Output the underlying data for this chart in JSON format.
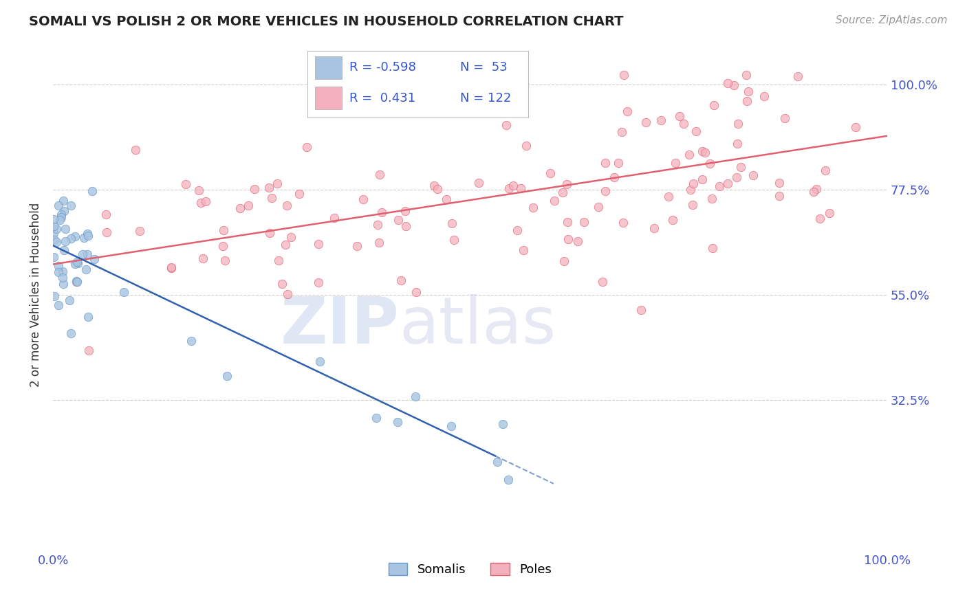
{
  "title": "SOMALI VS POLISH 2 OR MORE VEHICLES IN HOUSEHOLD CORRELATION CHART",
  "source": "Source: ZipAtlas.com",
  "ylabel": "2 or more Vehicles in Household",
  "yticks": [
    "32.5%",
    "55.0%",
    "77.5%",
    "100.0%"
  ],
  "ytick_vals": [
    0.325,
    0.55,
    0.775,
    1.0
  ],
  "somali_color": "#a8c4e0",
  "somali_edge": "#6699cc",
  "poles_color": "#f4b0bc",
  "poles_edge": "#e06070",
  "somali_line_color": "#3060b0",
  "poles_line_color": "#e06070",
  "watermark_zip": "ZIP",
  "watermark_atlas": "atlas",
  "bg_color": "#ffffff",
  "grid_color": "#cccccc",
  "legend_r1": "R = -0.598",
  "legend_n1": "N =  53",
  "legend_r2": "R =  0.431",
  "legend_n2": "N = 122",
  "r_color": "#3355cc",
  "label_color": "#333333",
  "tick_color": "#4455cc",
  "source_color": "#999999"
}
